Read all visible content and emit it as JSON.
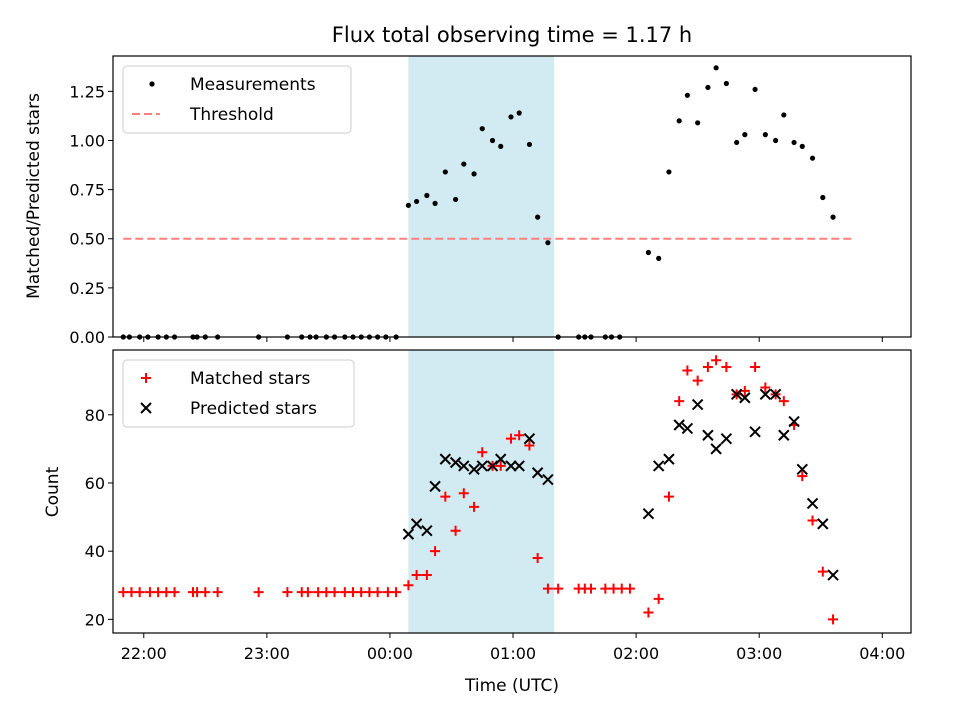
{
  "figure": {
    "title": "Flux total observing time = 1.17 h",
    "xlabel": "Time (UTC)",
    "x_ticks": [
      "22:00",
      "23:00",
      "00:00",
      "01:00",
      "02:00",
      "03:00",
      "04:00"
    ],
    "highlight_color": "#add8e6",
    "shaded_interval": [
      "00:09",
      "01:20"
    ]
  },
  "chart_data": [
    {
      "type": "scatter",
      "panel": "top",
      "ylabel": "Matched/Predicted stars",
      "ylim": [
        0,
        1.43
      ],
      "y_ticks": [
        "0.00",
        "0.25",
        "0.50",
        "0.75",
        "1.00",
        "1.25"
      ],
      "legend": {
        "placement": "upper-left",
        "entries": [
          "Measurements",
          "Threshold"
        ]
      },
      "series": [
        {
          "name": "Measurements",
          "color": "#000000",
          "marker": "dot",
          "points": [
            [
              "21:50",
              0
            ],
            [
              "21:53",
              0
            ],
            [
              "21:58",
              0
            ],
            [
              "22:02",
              0
            ],
            [
              "22:07",
              0
            ],
            [
              "22:11",
              0
            ],
            [
              "22:15",
              0
            ],
            [
              "22:24",
              0
            ],
            [
              "22:26",
              0
            ],
            [
              "22:30",
              0
            ],
            [
              "22:36",
              0
            ],
            [
              "22:56",
              0
            ],
            [
              "23:10",
              0
            ],
            [
              "23:17",
              0
            ],
            [
              "23:21",
              0
            ],
            [
              "23:24",
              0
            ],
            [
              "23:29",
              0
            ],
            [
              "23:33",
              0
            ],
            [
              "23:38",
              0
            ],
            [
              "23:42",
              0
            ],
            [
              "23:46",
              0
            ],
            [
              "23:50",
              0
            ],
            [
              "23:54",
              0
            ],
            [
              "23:58",
              0
            ],
            [
              "00:03",
              0
            ],
            [
              "00:09",
              0.67
            ],
            [
              "00:13",
              0.69
            ],
            [
              "00:18",
              0.72
            ],
            [
              "00:22",
              0.68
            ],
            [
              "00:27",
              0.84
            ],
            [
              "00:32",
              0.7
            ],
            [
              "00:36",
              0.88
            ],
            [
              "00:41",
              0.83
            ],
            [
              "00:45",
              1.06
            ],
            [
              "00:50",
              1.0
            ],
            [
              "00:54",
              0.97
            ],
            [
              "00:59",
              1.12
            ],
            [
              "01:03",
              1.14
            ],
            [
              "01:08",
              0.98
            ],
            [
              "01:12",
              0.61
            ],
            [
              "01:17",
              0.48
            ],
            [
              "01:22",
              0
            ],
            [
              "01:32",
              0
            ],
            [
              "01:35",
              0
            ],
            [
              "01:38",
              0
            ],
            [
              "01:45",
              0
            ],
            [
              "01:48",
              0
            ],
            [
              "01:52",
              0
            ],
            [
              "02:06",
              0.43
            ],
            [
              "02:11",
              0.4
            ],
            [
              "02:16",
              0.84
            ],
            [
              "02:21",
              1.1
            ],
            [
              "02:25",
              1.23
            ],
            [
              "02:30",
              1.09
            ],
            [
              "02:35",
              1.27
            ],
            [
              "02:39",
              1.37
            ],
            [
              "02:44",
              1.29
            ],
            [
              "02:49",
              0.99
            ],
            [
              "02:53",
              1.03
            ],
            [
              "02:58",
              1.26
            ],
            [
              "03:03",
              1.03
            ],
            [
              "03:08",
              1.0
            ],
            [
              "03:12",
              1.13
            ],
            [
              "03:17",
              0.99
            ],
            [
              "03:21",
              0.97
            ],
            [
              "03:26",
              0.91
            ],
            [
              "03:31",
              0.71
            ],
            [
              "03:36",
              0.61
            ]
          ]
        },
        {
          "name": "Threshold",
          "color": "#ff7f7f",
          "style": "dashed",
          "y": 0.5,
          "x_range": [
            "21:50",
            "03:46"
          ]
        }
      ]
    },
    {
      "type": "scatter",
      "panel": "bottom",
      "ylabel": "Count",
      "ylim": [
        16,
        99
      ],
      "y_ticks": [
        "20",
        "40",
        "60",
        "80"
      ],
      "legend": {
        "placement": "upper-left",
        "entries": [
          "Matched stars",
          "Predicted stars"
        ]
      },
      "series": [
        {
          "name": "Matched stars",
          "color": "#ff0000",
          "marker": "plus",
          "points": [
            [
              "21:50",
              28
            ],
            [
              "21:54",
              28
            ],
            [
              "21:58",
              28
            ],
            [
              "22:03",
              28
            ],
            [
              "22:07",
              28
            ],
            [
              "22:11",
              28
            ],
            [
              "22:15",
              28
            ],
            [
              "22:24",
              28
            ],
            [
              "22:26",
              28
            ],
            [
              "22:30",
              28
            ],
            [
              "22:36",
              28
            ],
            [
              "22:56",
              28
            ],
            [
              "23:10",
              28
            ],
            [
              "23:17",
              28
            ],
            [
              "23:20",
              28
            ],
            [
              "23:25",
              28
            ],
            [
              "23:29",
              28
            ],
            [
              "23:33",
              28
            ],
            [
              "23:38",
              28
            ],
            [
              "23:42",
              28
            ],
            [
              "23:46",
              28
            ],
            [
              "23:50",
              28
            ],
            [
              "23:54",
              28
            ],
            [
              "23:59",
              28
            ],
            [
              "00:03",
              28
            ],
            [
              "00:09",
              30
            ],
            [
              "00:13",
              33
            ],
            [
              "00:18",
              33
            ],
            [
              "00:22",
              40
            ],
            [
              "00:27",
              56
            ],
            [
              "00:32",
              46
            ],
            [
              "00:36",
              57
            ],
            [
              "00:41",
              53
            ],
            [
              "00:45",
              69
            ],
            [
              "00:50",
              65
            ],
            [
              "00:54",
              65
            ],
            [
              "00:59",
              73
            ],
            [
              "01:03",
              74
            ],
            [
              "01:08",
              71
            ],
            [
              "01:12",
              38
            ],
            [
              "01:17",
              29
            ],
            [
              "01:22",
              29
            ],
            [
              "01:32",
              29
            ],
            [
              "01:35",
              29
            ],
            [
              "01:38",
              29
            ],
            [
              "01:45",
              29
            ],
            [
              "01:49",
              29
            ],
            [
              "01:53",
              29
            ],
            [
              "01:57",
              29
            ],
            [
              "02:06",
              22
            ],
            [
              "02:11",
              26
            ],
            [
              "02:16",
              56
            ],
            [
              "02:21",
              84
            ],
            [
              "02:25",
              93
            ],
            [
              "02:30",
              90
            ],
            [
              "02:35",
              94
            ],
            [
              "02:39",
              96
            ],
            [
              "02:44",
              94
            ],
            [
              "02:49",
              86
            ],
            [
              "02:53",
              87
            ],
            [
              "02:58",
              94
            ],
            [
              "03:03",
              88
            ],
            [
              "03:08",
              86
            ],
            [
              "03:12",
              84
            ],
            [
              "03:17",
              77
            ],
            [
              "03:21",
              62
            ],
            [
              "03:26",
              49
            ],
            [
              "03:31",
              34
            ],
            [
              "03:36",
              20
            ]
          ]
        },
        {
          "name": "Predicted stars",
          "color": "#000000",
          "marker": "x",
          "points": [
            [
              "00:09",
              45
            ],
            [
              "00:13",
              48
            ],
            [
              "00:18",
              46
            ],
            [
              "00:22",
              59
            ],
            [
              "00:27",
              67
            ],
            [
              "00:32",
              66
            ],
            [
              "00:36",
              65
            ],
            [
              "00:41",
              64
            ],
            [
              "00:45",
              65
            ],
            [
              "00:50",
              65
            ],
            [
              "00:54",
              67
            ],
            [
              "00:59",
              65
            ],
            [
              "01:03",
              65
            ],
            [
              "01:08",
              73
            ],
            [
              "01:12",
              63
            ],
            [
              "01:17",
              61
            ],
            [
              "02:06",
              51
            ],
            [
              "02:11",
              65
            ],
            [
              "02:16",
              67
            ],
            [
              "02:21",
              77
            ],
            [
              "02:25",
              76
            ],
            [
              "02:30",
              83
            ],
            [
              "02:35",
              74
            ],
            [
              "02:39",
              70
            ],
            [
              "02:44",
              73
            ],
            [
              "02:49",
              86
            ],
            [
              "02:53",
              85
            ],
            [
              "02:58",
              75
            ],
            [
              "03:03",
              86
            ],
            [
              "03:08",
              86
            ],
            [
              "03:12",
              74
            ],
            [
              "03:17",
              78
            ],
            [
              "03:21",
              64
            ],
            [
              "03:26",
              54
            ],
            [
              "03:31",
              48
            ],
            [
              "03:36",
              33
            ]
          ]
        }
      ]
    }
  ]
}
